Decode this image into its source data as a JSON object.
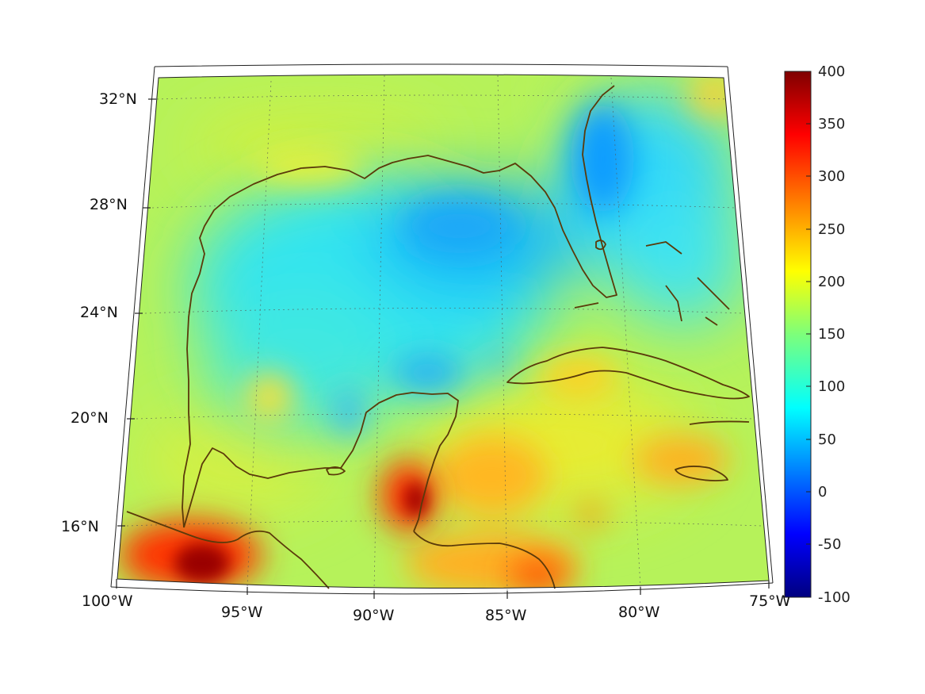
{
  "map": {
    "lon_labels": [
      "100°W",
      "95°W",
      "90°W",
      "85°W",
      "80°W",
      "75°W"
    ],
    "lat_labels": [
      "16°N",
      "20°N",
      "24°N",
      "28°N",
      "32°N"
    ],
    "extent": {
      "lon_min": -100,
      "lon_max": -75,
      "lat_min": 14,
      "lat_max": 33
    },
    "projection": "conic",
    "grid": "dotted graticule",
    "coastline_color": "#5a3a0a",
    "land_and_sea_field": "continuous color field, values mostly 100–200 over the Gulf, higher (300–400) near 97°W 15°N and 88°W 17°N"
  },
  "colorbar": {
    "colormap": "jet",
    "min": -100,
    "max": 400,
    "tick_labels": [
      "400",
      "350",
      "300",
      "250",
      "200",
      "150",
      "100",
      "50",
      "0",
      "-50",
      "-100"
    ]
  }
}
